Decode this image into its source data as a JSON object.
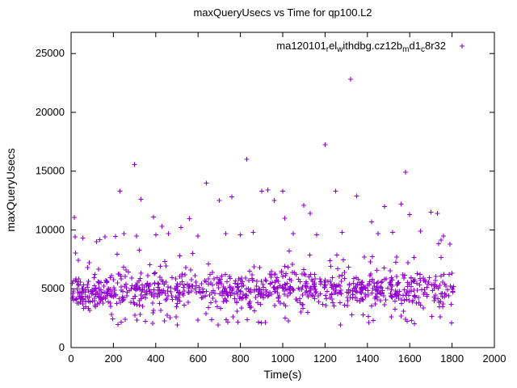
{
  "chart_data": {
    "type": "scatter",
    "title": "maxQueryUsecs vs Time for qp100.L2",
    "xlabel": "Time(s)",
    "ylabel": "maxQueryUsecs",
    "xlim": [
      0,
      2000
    ],
    "ylim": [
      0,
      26800
    ],
    "xticks": [
      0,
      200,
      400,
      600,
      800,
      1000,
      1200,
      1400,
      1600,
      1800,
      2000
    ],
    "yticks": [
      0,
      5000,
      10000,
      15000,
      20000,
      25000
    ],
    "grid": false,
    "legend": {
      "position": "top-right-inside",
      "marker": "plus",
      "marker_color": "#9400D3",
      "flat_text": "ma120101relwithdbg.cz12bmd1c8r32",
      "segments": [
        {
          "t": "ma120101",
          "sub": false
        },
        {
          "t": "r",
          "sub": true
        },
        {
          "t": "el",
          "sub": false
        },
        {
          "t": "w",
          "sub": true
        },
        {
          "t": "ithdbg.cz12b",
          "sub": false
        },
        {
          "t": "m",
          "sub": true
        },
        {
          "t": "d1",
          "sub": false
        },
        {
          "t": "c",
          "sub": true
        },
        {
          "t": "8r32",
          "sub": false
        }
      ]
    },
    "series": [
      {
        "name": "ma120101relwithdbg.cz12bmd1c8r32",
        "marker": "plus",
        "color": "#9400D3"
      }
    ],
    "band": {
      "description": "dense scatter band: x from ~5s to ~1810s, y mostly 3000-7500 usec centered near 4800, upper tail to ~9600, sparse low points near 2000-3000",
      "n": 950,
      "seed": 1337,
      "x_range": [
        5,
        1810
      ],
      "y_core": [
        3200,
        6600
      ],
      "y_tail_max": 9600,
      "y_low_min": 1900
    },
    "outliers": [
      [
        15,
        11050
      ],
      [
        20,
        9400
      ],
      [
        55,
        9300
      ],
      [
        120,
        9000
      ],
      [
        160,
        9400
      ],
      [
        210,
        9450
      ],
      [
        230,
        13300
      ],
      [
        250,
        9700
      ],
      [
        300,
        15550
      ],
      [
        310,
        9500
      ],
      [
        330,
        12600
      ],
      [
        390,
        11100
      ],
      [
        400,
        9600
      ],
      [
        430,
        10300
      ],
      [
        460,
        9700
      ],
      [
        520,
        10200
      ],
      [
        560,
        10950
      ],
      [
        600,
        9500
      ],
      [
        640,
        14000
      ],
      [
        700,
        12500
      ],
      [
        730,
        9700
      ],
      [
        760,
        12800
      ],
      [
        800,
        9600
      ],
      [
        830,
        16000
      ],
      [
        860,
        9800
      ],
      [
        900,
        13300
      ],
      [
        930,
        13400
      ],
      [
        960,
        12500
      ],
      [
        1000,
        13300
      ],
      [
        1010,
        11000
      ],
      [
        1050,
        9700
      ],
      [
        1100,
        12100
      ],
      [
        1130,
        11400
      ],
      [
        1160,
        9600
      ],
      [
        1200,
        17250
      ],
      [
        1250,
        13300
      ],
      [
        1280,
        9800
      ],
      [
        1320,
        22800
      ],
      [
        1350,
        12900
      ],
      [
        1420,
        10700
      ],
      [
        1450,
        9700
      ],
      [
        1480,
        12000
      ],
      [
        1520,
        9800
      ],
      [
        1560,
        12200
      ],
      [
        1580,
        14900
      ],
      [
        1600,
        11300
      ],
      [
        1650,
        9900
      ],
      [
        1700,
        11500
      ],
      [
        1730,
        11400
      ],
      [
        1760,
        9500
      ],
      [
        1790,
        8800
      ]
    ],
    "plot_frame_color": "#000000",
    "background_color": "#ffffff"
  }
}
